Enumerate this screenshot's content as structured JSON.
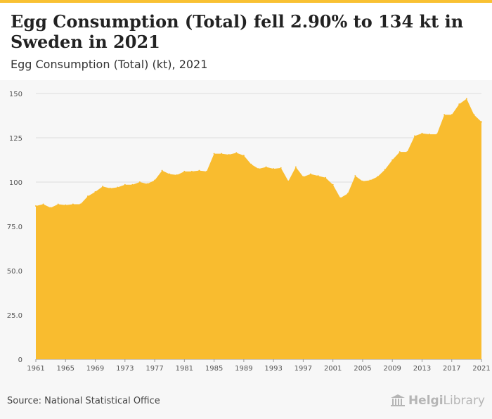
{
  "header": {
    "title": "Egg Consumption (Total) fell 2.90% to 134 kt in Sweden in 2021",
    "subtitle": "Egg Consumption (Total) (kt), 2021"
  },
  "footer": {
    "source": "Source: National Statistical Office",
    "logo_bold": "Helgi",
    "logo_light": "Library"
  },
  "colors": {
    "area": "#f9bc2f",
    "grid": "#dddddd",
    "accent": "#f9c132"
  },
  "chart_data": {
    "type": "area",
    "title": "Egg Consumption (Total) (kt), 2021",
    "xlabel": "",
    "ylabel": "",
    "xlim": [
      1961,
      2021
    ],
    "ylim": [
      0,
      150
    ],
    "yticks": [
      0,
      25.0,
      50.0,
      75.0,
      100,
      125,
      150
    ],
    "ytick_labels": [
      "0",
      "25.0",
      "50.0",
      "75.0",
      "100",
      "125",
      "150"
    ],
    "xticks": [
      1961,
      1965,
      1969,
      1973,
      1977,
      1981,
      1985,
      1989,
      1993,
      1997,
      2001,
      2005,
      2009,
      2013,
      2017,
      2021
    ],
    "x": [
      1961,
      1962,
      1963,
      1964,
      1965,
      1966,
      1967,
      1968,
      1969,
      1970,
      1971,
      1972,
      1973,
      1974,
      1975,
      1976,
      1977,
      1978,
      1979,
      1980,
      1981,
      1982,
      1983,
      1984,
      1985,
      1986,
      1987,
      1988,
      1989,
      1990,
      1991,
      1992,
      1993,
      1994,
      1995,
      1996,
      1997,
      1998,
      1999,
      2000,
      2001,
      2002,
      2003,
      2004,
      2005,
      2006,
      2007,
      2008,
      2009,
      2010,
      2011,
      2012,
      2013,
      2014,
      2015,
      2016,
      2017,
      2018,
      2019,
      2020,
      2021
    ],
    "values": [
      86.5,
      87.5,
      85.5,
      87.5,
      87,
      87.5,
      87.5,
      92,
      94.5,
      97.5,
      96.5,
      97,
      98.5,
      98.5,
      100,
      99,
      101,
      106.5,
      104.5,
      104,
      106,
      106,
      106.5,
      106,
      116,
      116,
      115.5,
      116.5,
      115,
      110,
      107.5,
      108.5,
      107.5,
      108,
      100.5,
      108.5,
      103,
      104.5,
      103.5,
      102.5,
      98.5,
      91,
      93.5,
      103.5,
      100.5,
      101,
      103,
      107,
      112.5,
      117,
      117,
      126,
      127.5,
      127,
      127,
      138,
      138,
      144,
      147,
      138,
      134
    ]
  }
}
